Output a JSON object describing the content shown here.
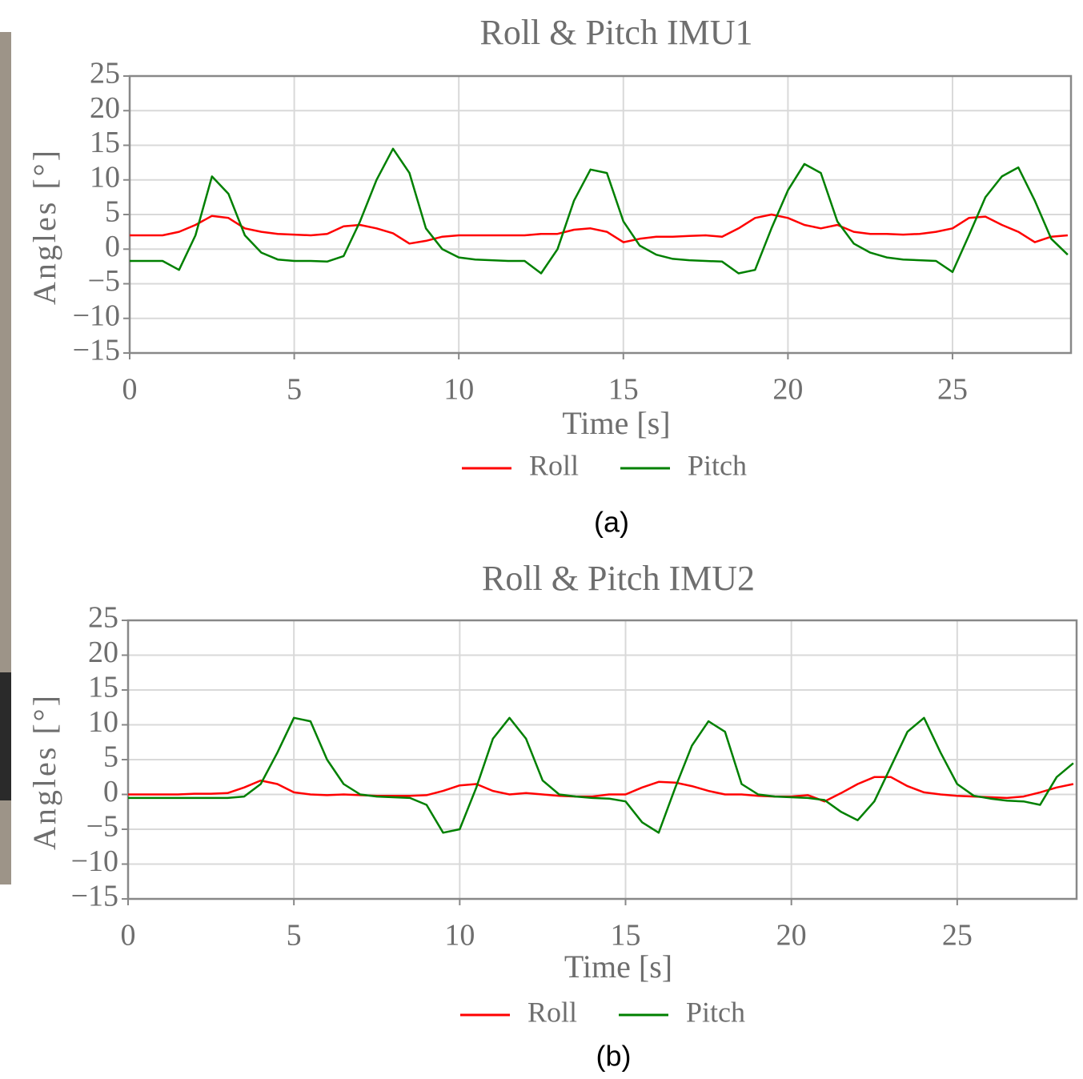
{
  "chart_data": [
    {
      "type": "line",
      "title": "Roll & Pitch IMU1",
      "x_label": "Time [s]",
      "y_label": "Angles [°]",
      "caption": "(a)",
      "x": [
        0,
        0.5,
        1,
        1.5,
        2,
        2.5,
        3,
        3.5,
        4,
        4.5,
        5,
        5.5,
        6,
        6.5,
        7,
        7.5,
        8,
        8.5,
        9,
        9.5,
        10,
        10.5,
        11,
        11.5,
        12,
        12.5,
        13,
        13.5,
        14,
        14.5,
        15,
        15.5,
        16,
        16.5,
        17,
        17.5,
        18,
        18.5,
        19,
        19.5,
        20,
        20.5,
        21,
        21.5,
        22,
        22.5,
        23,
        23.5,
        24,
        24.5,
        25,
        25.5,
        26,
        26.5,
        27,
        27.5,
        28,
        28.5
      ],
      "series": [
        {
          "name": "Roll",
          "color": "#ff0000",
          "values": [
            2,
            2,
            2,
            2.5,
            3.5,
            4.8,
            4.5,
            3,
            2.5,
            2.2,
            2.1,
            2,
            2.2,
            3.3,
            3.5,
            3,
            2.3,
            0.8,
            1.2,
            1.8,
            2,
            2,
            2,
            2,
            2,
            2.2,
            2.2,
            2.8,
            3,
            2.5,
            1,
            1.5,
            1.8,
            1.8,
            1.9,
            2,
            1.8,
            3,
            4.5,
            5,
            4.5,
            3.5,
            3,
            3.5,
            2.5,
            2.2,
            2.2,
            2.1,
            2.2,
            2.5,
            3,
            4.5,
            4.7,
            3.5,
            2.5,
            1,
            1.8,
            2
          ]
        },
        {
          "name": "Pitch",
          "color": "#008000",
          "values": [
            -1.7,
            -1.7,
            -1.7,
            -3,
            2,
            10.5,
            8,
            2,
            -0.5,
            -1.5,
            -1.7,
            -1.7,
            -1.8,
            -1,
            4,
            10,
            14.5,
            11,
            3,
            0,
            -1.2,
            -1.5,
            -1.6,
            -1.7,
            -1.7,
            -3.5,
            0,
            7,
            11.5,
            11,
            4,
            0.5,
            -0.8,
            -1.4,
            -1.6,
            -1.7,
            -1.8,
            -3.5,
            -3,
            3,
            8.5,
            12.3,
            11,
            4,
            0.8,
            -0.5,
            -1.2,
            -1.5,
            -1.6,
            -1.7,
            -3.3,
            2,
            7.5,
            10.5,
            11.8,
            7,
            1.5,
            -0.8
          ]
        }
      ],
      "xlim": [
        0,
        28.6
      ],
      "xticks": [
        0,
        5,
        10,
        15,
        20,
        25
      ],
      "ylim": [
        -15,
        25
      ],
      "yticks": [
        25,
        20,
        15,
        10,
        5,
        0,
        {
          "value": -5,
          "label": "−5"
        },
        {
          "value": -10,
          "label": "−10"
        },
        {
          "value": -15,
          "label": "−15"
        }
      ],
      "grid": true,
      "legend": "below"
    },
    {
      "type": "line",
      "title": "Roll & Pitch IMU2",
      "x_label": "Time [s]",
      "y_label": "Angles [°]",
      "caption": "(b)",
      "x": [
        0,
        0.5,
        1,
        1.5,
        2,
        2.5,
        3,
        3.5,
        4,
        4.5,
        5,
        5.5,
        6,
        6.5,
        7,
        7.5,
        8,
        8.5,
        9,
        9.5,
        10,
        10.5,
        11,
        11.5,
        12,
        12.5,
        13,
        13.5,
        14,
        14.5,
        15,
        15.5,
        16,
        16.5,
        17,
        17.5,
        18,
        18.5,
        19,
        19.5,
        20,
        20.5,
        21,
        21.5,
        22,
        22.5,
        23,
        23.5,
        24,
        24.5,
        25,
        25.5,
        26,
        26.5,
        27,
        27.5,
        28,
        28.5
      ],
      "series": [
        {
          "name": "Roll",
          "color": "#ff0000",
          "values": [
            0,
            0,
            0,
            0,
            0.1,
            0.1,
            0.2,
            1,
            2,
            1.5,
            0.3,
            0,
            -0.1,
            0,
            -0.1,
            -0.2,
            -0.2,
            -0.2,
            -0.1,
            0.5,
            1.3,
            1.5,
            0.5,
            0,
            0.2,
            0,
            -0.2,
            -0.3,
            -0.3,
            0,
            0,
            1,
            1.8,
            1.7,
            1.2,
            0.5,
            0,
            0,
            -0.2,
            -0.3,
            -0.3,
            -0.1,
            -1,
            0.2,
            1.5,
            2.5,
            2.5,
            1.2,
            0.3,
            0,
            -0.2,
            -0.3,
            -0.4,
            -0.5,
            -0.3,
            0.3,
            1,
            1.5
          ]
        },
        {
          "name": "Pitch",
          "color": "#008000",
          "values": [
            -0.5,
            -0.5,
            -0.5,
            -0.5,
            -0.5,
            -0.5,
            -0.5,
            -0.3,
            1.5,
            6,
            11,
            10.5,
            5,
            1.5,
            0,
            -0.3,
            -0.4,
            -0.5,
            -1.5,
            -5.5,
            -5,
            1,
            8,
            11,
            8,
            2,
            0,
            -0.3,
            -0.5,
            -0.6,
            -1,
            -4,
            -5.5,
            1,
            7,
            10.5,
            9,
            1.5,
            0,
            -0.3,
            -0.4,
            -0.5,
            -0.8,
            -2.5,
            -3.7,
            -1,
            4,
            9,
            11,
            6,
            1.5,
            -0.2,
            -0.6,
            -0.9,
            -1,
            -1.5,
            2.5,
            4.5
          ]
        }
      ],
      "xlim": [
        0,
        28.6
      ],
      "xticks": [
        0,
        5,
        10,
        15,
        20,
        25
      ],
      "ylim": [
        -15,
        25
      ],
      "yticks": [
        25,
        20,
        15,
        10,
        5,
        0,
        {
          "value": -5,
          "label": "−5"
        },
        {
          "value": -10,
          "label": "−10"
        },
        {
          "value": -15,
          "label": "−15"
        }
      ],
      "grid": true,
      "legend": "below"
    }
  ]
}
